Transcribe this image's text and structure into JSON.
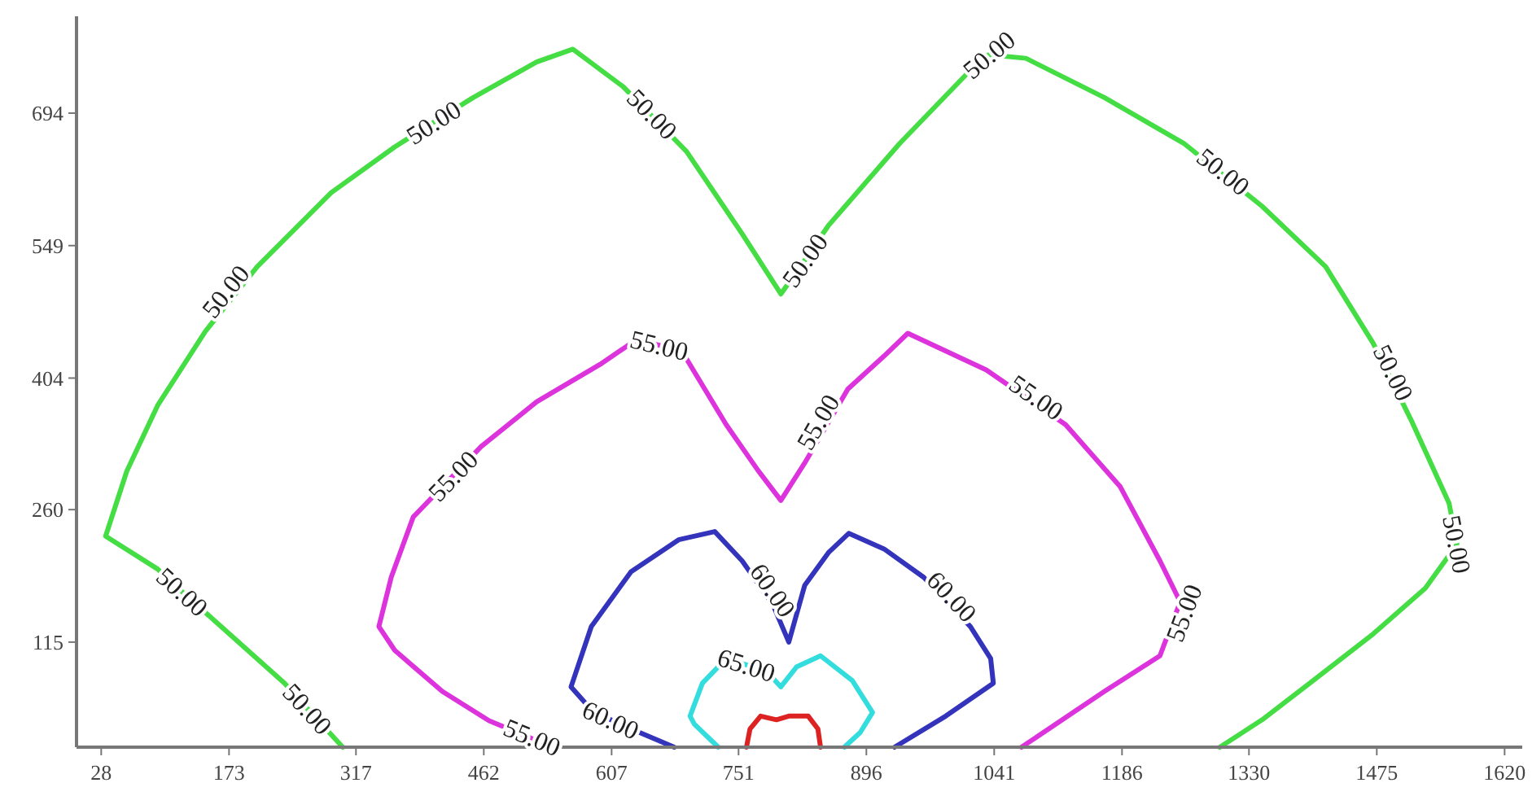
{
  "chart_data": {
    "type": "line",
    "xlim": [
      0,
      1640
    ],
    "ylim": [
      0,
      800
    ],
    "xticks": [
      28,
      173,
      317,
      462,
      607,
      751,
      896,
      1041,
      1186,
      1330,
      1475,
      1620
    ],
    "yticks": [
      115,
      260,
      404,
      549,
      694
    ],
    "grid": false,
    "marker": "none",
    "line_style": "solid",
    "series": [
      {
        "color": "#44dd44",
        "x": [
          302,
          262,
          236,
          164,
          120,
          92,
          33,
          57,
          92,
          146,
          205,
          289,
          361,
          405,
          450,
          522,
          563,
          620,
          692,
          755,
          799,
          826,
          853,
          934,
          1014,
          1035,
          1077,
          1166,
          1256,
          1345,
          1417,
          1471,
          1515,
          1557,
          1566,
          1530,
          1471,
          1399,
          1345,
          1297
        ],
        "values": [
          0,
          42,
          70,
          132,
          170,
          195,
          231,
          302,
          374,
          455,
          526,
          607,
          657,
          684,
          711,
          750,
          764,
          723,
          652,
          562,
          496,
          533,
          571,
          661,
          741,
          758,
          754,
          711,
          661,
          592,
          526,
          442,
          356,
          267,
          222,
          174,
          124,
          70,
          30,
          0
        ]
      },
      {
        "color": "#dd33dd",
        "x": [
          540,
          468,
          415,
          361,
          343,
          357,
          382,
          424,
          459,
          522,
          594,
          635,
          661,
          687,
          737,
          773,
          799,
          826,
          875,
          916,
          943,
          1032,
          1122,
          1184,
          1229,
          1252,
          1229,
          1166,
          1072
        ],
        "values": [
          0,
          29,
          61,
          106,
          132,
          186,
          252,
          294,
          329,
          378,
          419,
          446,
          440,
          433,
          353,
          303,
          270,
          311,
          392,
          428,
          453,
          413,
          353,
          285,
          204,
          159,
          100,
          61,
          0
        ]
      },
      {
        "color": "#3333bb",
        "x": [
          678,
          629,
          606,
          584,
          561,
          584,
          629,
          683,
          724,
          755,
          790,
          808,
          826,
          853,
          876,
          916,
          961,
          1014,
          1037,
          1040,
          986,
          928
        ],
        "values": [
          0,
          20,
          30,
          41,
          66,
          132,
          192,
          227,
          236,
          204,
          156,
          115,
          177,
          213,
          234,
          217,
          186,
          132,
          97,
          70,
          34,
          0
        ]
      },
      {
        "color": "#33dddd",
        "x": [
          728,
          701,
          696,
          710,
          737,
          760,
          782,
          799,
          817,
          844,
          880,
          903,
          889,
          871
        ],
        "values": [
          0,
          25,
          34,
          70,
          97,
          90,
          84,
          66,
          88,
          100,
          73,
          38,
          16,
          0
        ]
      },
      {
        "color": "#dd2222",
        "x": [
          760,
          764,
          776,
          794,
          808,
          830,
          841,
          844
        ],
        "values": [
          0,
          20,
          34,
          30,
          34,
          34,
          20,
          0
        ]
      }
    ],
    "annotations": [
      {
        "text": "50.00",
        "x": 169,
        "y": 499
      },
      {
        "text": "50.00",
        "x": 405,
        "y": 684
      },
      {
        "text": "50.00",
        "x": 653,
        "y": 693
      },
      {
        "text": "50.00",
        "x": 826,
        "y": 533
      },
      {
        "text": "50.00",
        "x": 1035,
        "y": 758
      },
      {
        "text": "50.00",
        "x": 1301,
        "y": 630
      },
      {
        "text": "50.00",
        "x": 1494,
        "y": 410
      },
      {
        "text": "50.00",
        "x": 1566,
        "y": 222
      },
      {
        "text": "50.00",
        "x": 120,
        "y": 170
      },
      {
        "text": "50.00",
        "x": 262,
        "y": 42
      },
      {
        "text": "55.00",
        "x": 427,
        "y": 297
      },
      {
        "text": "55.00",
        "x": 661,
        "y": 440
      },
      {
        "text": "55.00",
        "x": 841,
        "y": 356
      },
      {
        "text": "55.00",
        "x": 1089,
        "y": 383
      },
      {
        "text": "55.00",
        "x": 1256,
        "y": 147
      },
      {
        "text": "55.00",
        "x": 517,
        "y": 11
      },
      {
        "text": "60.00",
        "x": 606,
        "y": 30
      },
      {
        "text": "60.00",
        "x": 790,
        "y": 172
      },
      {
        "text": "60.00",
        "x": 993,
        "y": 165
      },
      {
        "text": "65.00",
        "x": 760,
        "y": 90
      }
    ]
  }
}
